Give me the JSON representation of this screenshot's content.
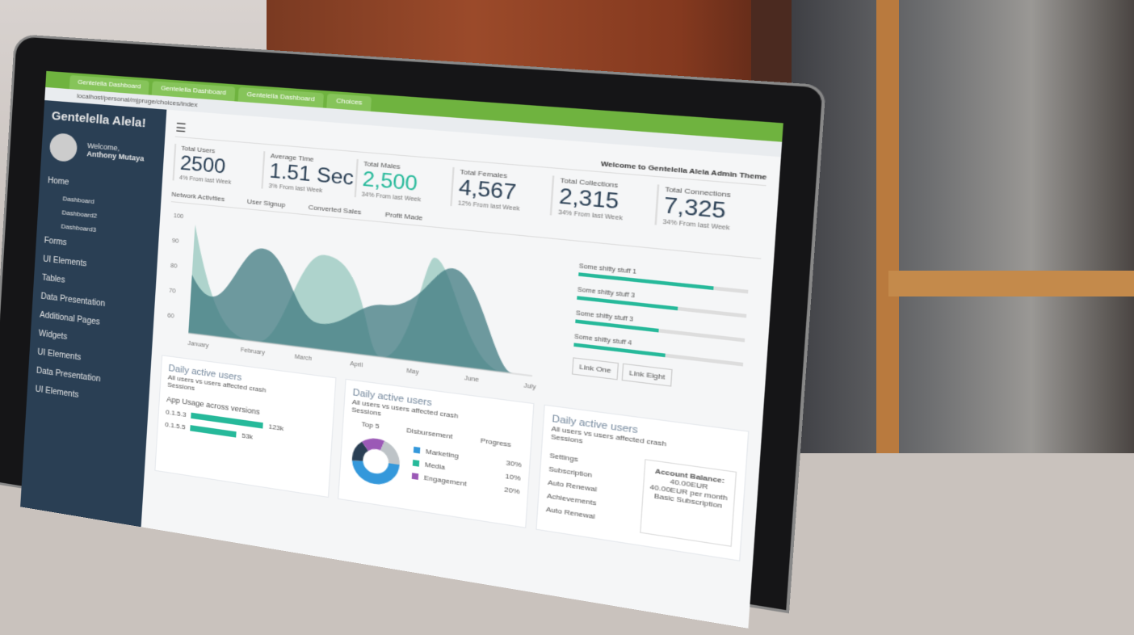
{
  "browser": {
    "tabs": [
      "Gentelella Dashboard",
      "Gentelella Dashboard",
      "Gentelella Dashboard",
      "Choices"
    ],
    "url": "localhost/personal/mjpruge/choices/index"
  },
  "sidebar": {
    "brand": "Gentelella Alela!",
    "welcome": "Welcome,",
    "user": "Anthony Mutaya",
    "items": [
      {
        "label": "Home"
      },
      {
        "label": "Dashboard",
        "sub": true
      },
      {
        "label": "Dashboard2",
        "sub": true
      },
      {
        "label": "Dashboard3",
        "sub": true
      },
      {
        "label": "Forms"
      },
      {
        "label": "UI Elements"
      },
      {
        "label": "Tables"
      },
      {
        "label": "Data Presentation"
      },
      {
        "label": "Additional Pages"
      },
      {
        "label": "Widgets"
      },
      {
        "label": "UI Elements"
      },
      {
        "label": "Data Presentation"
      },
      {
        "label": "UI Elements"
      }
    ]
  },
  "topbar": {
    "welcome": "Welcome to Gentelella Alela Admin Theme"
  },
  "stats": [
    {
      "label": "Total Users",
      "value": "2500",
      "change": "4% From last Week",
      "green": false
    },
    {
      "label": "Average Time",
      "value": "1.51 Sec",
      "change": "3% From last Week",
      "green": false
    },
    {
      "label": "Total Males",
      "value": "2,500",
      "change": "34% From last Week",
      "green": true
    },
    {
      "label": "Total Females",
      "value": "4,567",
      "change": "12% From last Week",
      "green": false
    },
    {
      "label": "Total Collections",
      "value": "2,315",
      "change": "34% From last Week",
      "green": false
    },
    {
      "label": "Total Connections",
      "value": "7,325",
      "change": "34% From last Week",
      "green": false
    }
  ],
  "chart_tabs": [
    "Network Activities",
    "User Signup",
    "Converted Sales",
    "Profit Made"
  ],
  "chart": {
    "y_ticks": [
      "100",
      "90",
      "80",
      "70",
      "60"
    ],
    "months": [
      "January",
      "February",
      "March",
      "April",
      "May",
      "June",
      "July"
    ]
  },
  "progress": [
    {
      "label": "Some shitty stuff 1",
      "value": 0.8
    },
    {
      "label": "Some shitty stuff 3",
      "value": 0.6
    },
    {
      "label": "Some shitty stuff 3",
      "value": 0.5
    },
    {
      "label": "Some shitty stuff 4",
      "value": 0.55
    }
  ],
  "links": [
    "Link One",
    "Link Eight"
  ],
  "panels": [
    {
      "title": "Daily active users",
      "note": "All users vs users affected crash",
      "sub": "Sessions",
      "heading": "App Usage across versions",
      "rows": [
        {
          "label": "0.1.5.3",
          "value": "123k",
          "pct": 0.7
        },
        {
          "label": "0.1.5.5",
          "value": "53k",
          "pct": 0.45
        }
      ]
    },
    {
      "title": "Daily active users",
      "note": "All users vs users affected crash",
      "sub": "Sessions",
      "cols": [
        "Top 5",
        "Disbursement",
        "Progress"
      ],
      "legend": [
        {
          "label": "Marketing",
          "value": "30%",
          "color": "#3498db"
        },
        {
          "label": "Media",
          "value": "10%",
          "color": "#26b99a"
        },
        {
          "label": "Engagement",
          "value": "20%",
          "color": "#9b59b6"
        }
      ]
    },
    {
      "title": "Daily active users",
      "note": "All users vs users affected crash",
      "sub": "Sessions",
      "items": [
        "Settings",
        "Subscription",
        "Auto Renewal",
        "Achievements",
        "Auto Renewal"
      ],
      "balance_title": "Account Balance:",
      "balance": "40.00EUR",
      "balance_line": "40.00EUR per month",
      "plan": "Basic Subscription"
    }
  ]
}
